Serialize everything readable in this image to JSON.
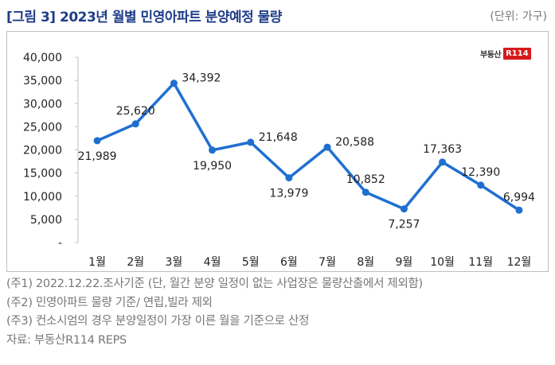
{
  "header": {
    "title": "[그림 3] 2023년 월별 민영아파트 분양예정 물량",
    "unit": "(단위: 가구)"
  },
  "logo": {
    "text": "부동산",
    "badge": "R114"
  },
  "chart_data": {
    "type": "line",
    "title": "2023년 월별 민영아파트 분양예정 물량",
    "categories": [
      "1월",
      "2월",
      "3월",
      "4월",
      "5월",
      "6월",
      "7월",
      "8월",
      "9월",
      "10월",
      "11월",
      "12월"
    ],
    "series": [
      {
        "name": "분양예정 물량",
        "color": "#1f6fd1",
        "values": [
          21989,
          25620,
          34392,
          19950,
          21648,
          13979,
          20588,
          10852,
          7257,
          17363,
          12390,
          6994
        ]
      }
    ],
    "data_labels": [
      "21,989",
      "25,620",
      "34,392",
      "19,950",
      "21,648",
      "13,979",
      "20,588",
      "10,852",
      "7,257",
      "17,363",
      "12,390",
      "6,994"
    ],
    "yticks": [
      0,
      5000,
      10000,
      15000,
      20000,
      25000,
      30000,
      35000,
      40000
    ],
    "ytick_labels": [
      "-",
      "5,000",
      "10,000",
      "15,000",
      "20,000",
      "25,000",
      "30,000",
      "35,000",
      "40,000"
    ],
    "ylim": [
      0,
      40000
    ],
    "xlabel": "",
    "ylabel": "",
    "grid": false
  },
  "notes": [
    "(주1) 2022.12.22.조사기준 (단, 월간 분양 일정이 없는 사업장은 물량산출에서 제외함)",
    "(주2) 민영아파트 물량 기준/ 연립,빌라 제외",
    "(주3) 컨소시엄의 경우 분양일정이 가장 이른 월을 기준으로 산정",
    "자료: 부동산R114 REPS"
  ]
}
